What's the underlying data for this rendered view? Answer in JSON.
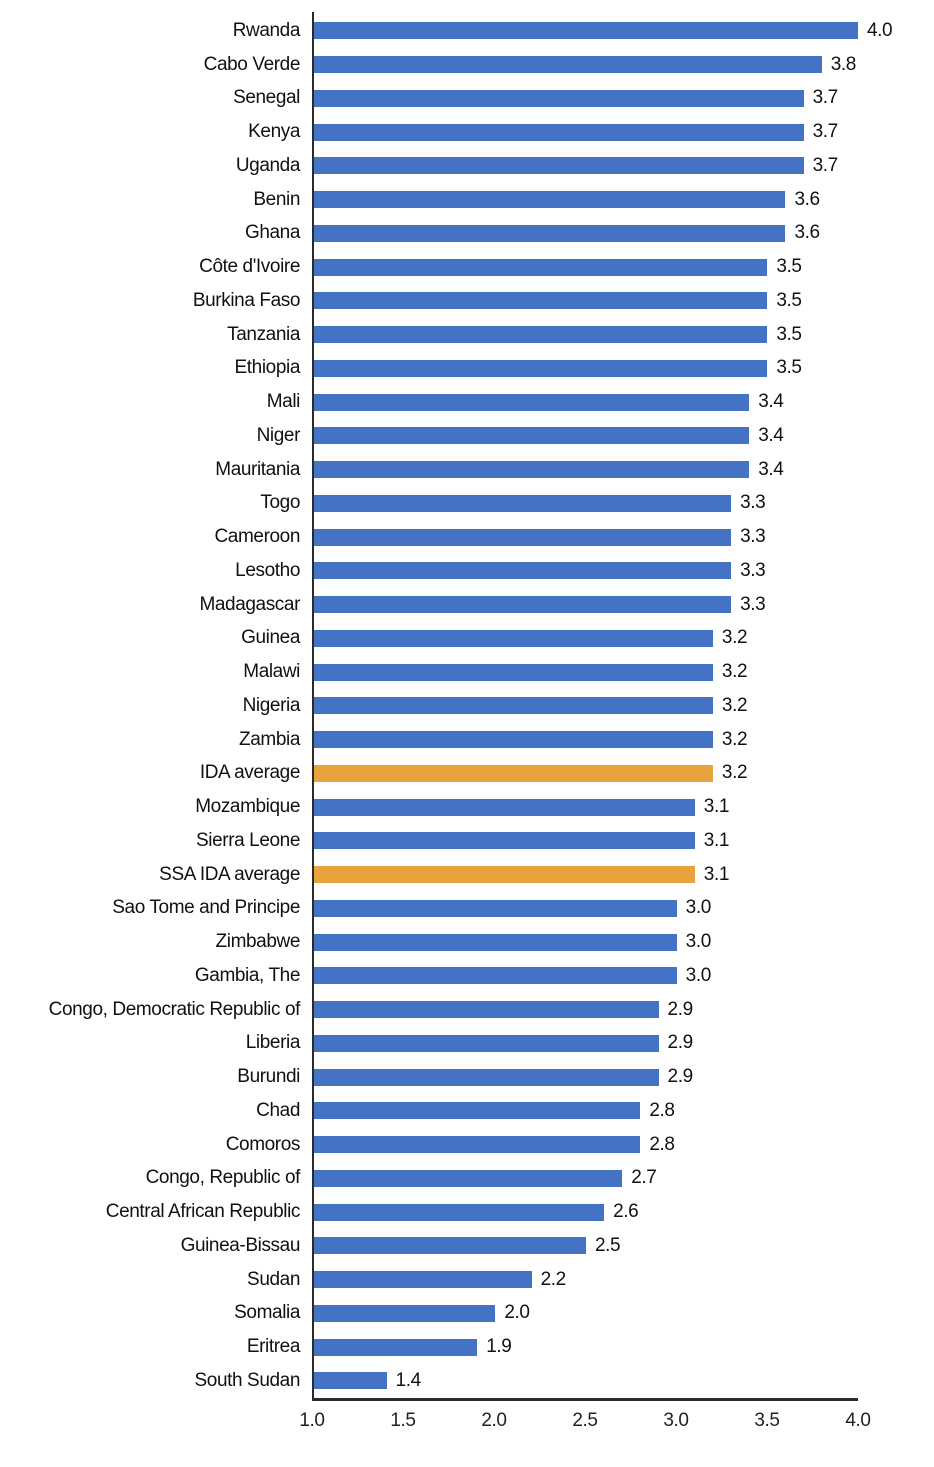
{
  "chart_data": {
    "type": "bar",
    "orientation": "horizontal",
    "title": "",
    "xlabel": "",
    "ylabel": "",
    "xlim": [
      1.0,
      4.0
    ],
    "x_ticks": [
      "1.0",
      "1.5",
      "2.0",
      "2.5",
      "3.0",
      "3.5",
      "4.0"
    ],
    "grid": false,
    "legend": "none",
    "bar_color": "#4472C4",
    "highlight_color": "#E9A23C",
    "axis_color": "#2b2b2b",
    "rows": [
      {
        "label": "Rwanda",
        "value": 4.0,
        "display": "4.0",
        "highlight": false
      },
      {
        "label": "Cabo Verde",
        "value": 3.8,
        "display": "3.8",
        "highlight": false
      },
      {
        "label": "Senegal",
        "value": 3.7,
        "display": "3.7",
        "highlight": false
      },
      {
        "label": "Kenya",
        "value": 3.7,
        "display": "3.7",
        "highlight": false
      },
      {
        "label": "Uganda",
        "value": 3.7,
        "display": "3.7",
        "highlight": false
      },
      {
        "label": "Benin",
        "value": 3.6,
        "display": "3.6",
        "highlight": false
      },
      {
        "label": "Ghana",
        "value": 3.6,
        "display": "3.6",
        "highlight": false
      },
      {
        "label": "Côte d'Ivoire",
        "value": 3.5,
        "display": "3.5",
        "highlight": false
      },
      {
        "label": "Burkina Faso",
        "value": 3.5,
        "display": "3.5",
        "highlight": false
      },
      {
        "label": "Tanzania",
        "value": 3.5,
        "display": "3.5",
        "highlight": false
      },
      {
        "label": "Ethiopia",
        "value": 3.5,
        "display": "3.5",
        "highlight": false
      },
      {
        "label": "Mali",
        "value": 3.4,
        "display": "3.4",
        "highlight": false
      },
      {
        "label": "Niger",
        "value": 3.4,
        "display": "3.4",
        "highlight": false
      },
      {
        "label": "Mauritania",
        "value": 3.4,
        "display": "3.4",
        "highlight": false
      },
      {
        "label": "Togo",
        "value": 3.3,
        "display": "3.3",
        "highlight": false
      },
      {
        "label": "Cameroon",
        "value": 3.3,
        "display": "3.3",
        "highlight": false
      },
      {
        "label": "Lesotho",
        "value": 3.3,
        "display": "3.3",
        "highlight": false
      },
      {
        "label": "Madagascar",
        "value": 3.3,
        "display": "3.3",
        "highlight": false
      },
      {
        "label": "Guinea",
        "value": 3.2,
        "display": "3.2",
        "highlight": false
      },
      {
        "label": "Malawi",
        "value": 3.2,
        "display": "3.2",
        "highlight": false
      },
      {
        "label": "Nigeria",
        "value": 3.2,
        "display": "3.2",
        "highlight": false
      },
      {
        "label": "Zambia",
        "value": 3.2,
        "display": "3.2",
        "highlight": false
      },
      {
        "label": "IDA average",
        "value": 3.2,
        "display": "3.2",
        "highlight": true
      },
      {
        "label": "Mozambique",
        "value": 3.1,
        "display": "3.1",
        "highlight": false
      },
      {
        "label": "Sierra Leone",
        "value": 3.1,
        "display": "3.1",
        "highlight": false
      },
      {
        "label": "SSA IDA average",
        "value": 3.1,
        "display": "3.1",
        "highlight": true
      },
      {
        "label": "Sao Tome and Principe",
        "value": 3.0,
        "display": "3.0",
        "highlight": false
      },
      {
        "label": "Zimbabwe",
        "value": 3.0,
        "display": "3.0",
        "highlight": false
      },
      {
        "label": "Gambia, The",
        "value": 3.0,
        "display": "3.0",
        "highlight": false
      },
      {
        "label": "Congo, Democratic Republic of",
        "value": 2.9,
        "display": "2.9",
        "highlight": false
      },
      {
        "label": "Liberia",
        "value": 2.9,
        "display": "2.9",
        "highlight": false
      },
      {
        "label": "Burundi",
        "value": 2.9,
        "display": "2.9",
        "highlight": false
      },
      {
        "label": "Chad",
        "value": 2.8,
        "display": "2.8",
        "highlight": false
      },
      {
        "label": "Comoros",
        "value": 2.8,
        "display": "2.8",
        "highlight": false
      },
      {
        "label": "Congo, Republic of",
        "value": 2.7,
        "display": "2.7",
        "highlight": false
      },
      {
        "label": "Central African Republic",
        "value": 2.6,
        "display": "2.6",
        "highlight": false
      },
      {
        "label": "Guinea-Bissau",
        "value": 2.5,
        "display": "2.5",
        "highlight": false
      },
      {
        "label": "Sudan",
        "value": 2.2,
        "display": "2.2",
        "highlight": false
      },
      {
        "label": "Somalia",
        "value": 2.0,
        "display": "2.0",
        "highlight": false
      },
      {
        "label": "Eritrea",
        "value": 1.9,
        "display": "1.9",
        "highlight": false
      },
      {
        "label": "South Sudan",
        "value": 1.4,
        "display": "1.4",
        "highlight": false
      }
    ]
  }
}
